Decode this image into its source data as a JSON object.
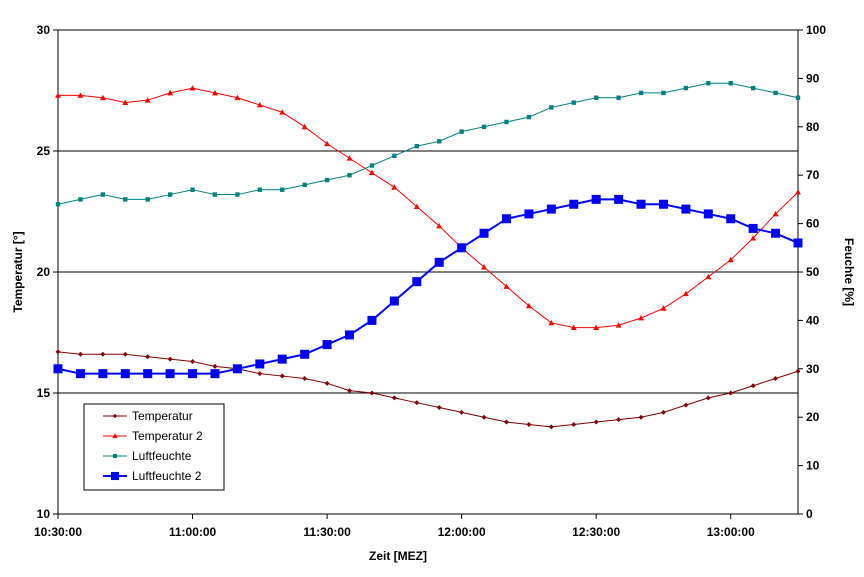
{
  "chart_data": {
    "type": "line",
    "title": "",
    "xlabel": "Zeit [MEZ]",
    "ylabel_left": "Temperatur [°]",
    "ylabel_right": "Feuchte [%]",
    "x_ticks": [
      "10:30:00",
      "11:00:00",
      "11:30:00",
      "12:00:00",
      "12:30:00",
      "13:00:00"
    ],
    "x_range_minutes": [
      0,
      165
    ],
    "y_left_range": [
      10,
      30
    ],
    "y_left_ticks": [
      "10",
      "15",
      "20",
      "25",
      "30"
    ],
    "y_right_range": [
      0,
      100
    ],
    "y_right_ticks": [
      "0",
      "10",
      "20",
      "30",
      "40",
      "50",
      "60",
      "70",
      "80",
      "90",
      "100"
    ],
    "grid": "horizontal major lines on left axis",
    "legend_position": "bottom-left inside plot",
    "series": [
      {
        "name": "Temperatur",
        "axis": "left",
        "color": "#800000",
        "marker": "diamond",
        "x": [
          0,
          5,
          10,
          15,
          20,
          25,
          30,
          35,
          40,
          45,
          50,
          55,
          60,
          65,
          70,
          75,
          80,
          85,
          90,
          95,
          100,
          105,
          110,
          115,
          120,
          125,
          130,
          135,
          140,
          145,
          150,
          155,
          160,
          165
        ],
        "y": [
          16.7,
          16.6,
          16.6,
          16.6,
          16.5,
          16.4,
          16.3,
          16.1,
          16.0,
          15.8,
          15.7,
          15.6,
          15.4,
          15.1,
          15.0,
          14.8,
          14.6,
          14.4,
          14.2,
          14.0,
          13.8,
          13.7,
          13.6,
          13.7,
          13.8,
          13.9,
          14.0,
          14.2,
          14.5,
          14.8,
          15.0,
          15.3,
          15.6,
          15.9
        ]
      },
      {
        "name": "Temperatur 2",
        "axis": "left",
        "color": "#ff0000",
        "marker": "triangle",
        "x": [
          0,
          5,
          10,
          15,
          20,
          25,
          30,
          35,
          40,
          45,
          50,
          55,
          60,
          65,
          70,
          75,
          80,
          85,
          90,
          95,
          100,
          105,
          110,
          115,
          120,
          125,
          130,
          135,
          140,
          145,
          150,
          155,
          160,
          165
        ],
        "y": [
          27.3,
          27.3,
          27.2,
          27.0,
          27.1,
          27.4,
          27.6,
          27.4,
          27.2,
          26.9,
          26.6,
          26.0,
          25.3,
          24.7,
          24.1,
          23.5,
          22.7,
          21.9,
          21.0,
          20.2,
          19.4,
          18.6,
          17.9,
          17.7,
          17.7,
          17.8,
          18.1,
          18.5,
          19.1,
          19.8,
          20.5,
          21.4,
          22.4,
          23.3
        ]
      },
      {
        "name": "Luftfeuchte",
        "axis": "right",
        "color": "#008080",
        "marker": "square",
        "x": [
          0,
          5,
          10,
          15,
          20,
          25,
          30,
          35,
          40,
          45,
          50,
          55,
          60,
          65,
          70,
          75,
          80,
          85,
          90,
          95,
          100,
          105,
          110,
          115,
          120,
          125,
          130,
          135,
          140,
          145,
          150,
          155,
          160,
          165
        ],
        "y": [
          64,
          65,
          66,
          65,
          65,
          66,
          67,
          66,
          66,
          67,
          67,
          68,
          69,
          70,
          72,
          74,
          76,
          77,
          79,
          80,
          81,
          82,
          84,
          85,
          86,
          86,
          87,
          87,
          88,
          89,
          89,
          88,
          87,
          86
        ]
      },
      {
        "name": "Luftfeuchte 2",
        "axis": "right",
        "color": "#0000ff",
        "marker": "square",
        "x": [
          0,
          5,
          10,
          15,
          20,
          25,
          30,
          35,
          40,
          45,
          50,
          55,
          60,
          65,
          70,
          75,
          80,
          85,
          90,
          95,
          100,
          105,
          110,
          115,
          120,
          125,
          130,
          135,
          140,
          145,
          150,
          155,
          160,
          165
        ],
        "y": [
          30,
          29,
          29,
          29,
          29,
          29,
          29,
          29,
          30,
          31,
          32,
          33,
          35,
          37,
          40,
          44,
          48,
          52,
          55,
          58,
          61,
          62,
          63,
          64,
          65,
          65,
          64,
          64,
          63,
          62,
          61,
          59,
          58,
          56
        ]
      }
    ]
  }
}
